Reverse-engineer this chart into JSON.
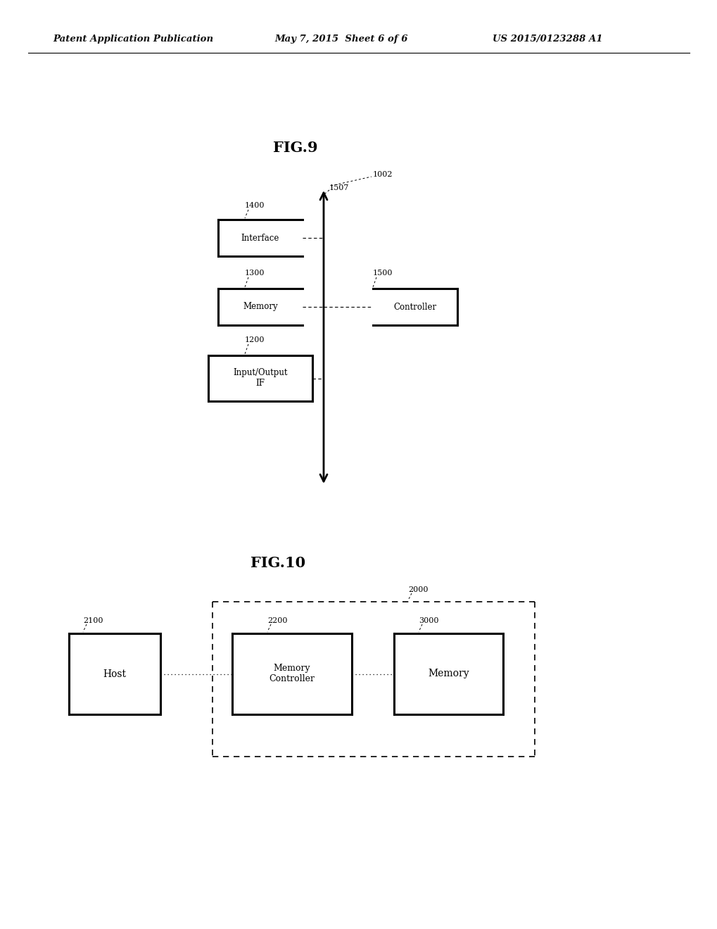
{
  "bg_color": "#ffffff",
  "header_left": "Patent Application Publication",
  "header_mid": "May 7, 2015  Sheet 6 of 6",
  "header_right": "US 2015/0123288 A1",
  "fig9_title": "FIG.9",
  "fig10_title": "FIG.10",
  "fig9": {
    "label_1002": "1002",
    "label_1400": "1400",
    "label_1300": "1300",
    "label_1200": "1200",
    "label_1500": "1500",
    "label_1507": "1507",
    "box_interface": "Interface",
    "box_memory": "Memory",
    "box_io": "Input/Output\nIF",
    "box_controller": "Controller"
  },
  "fig10": {
    "label_2000": "2000",
    "label_2100": "2100",
    "label_2200": "2200",
    "label_3000": "3000",
    "box_host": "Host",
    "box_controller": "Memory\nController",
    "box_memory": "Memory"
  }
}
